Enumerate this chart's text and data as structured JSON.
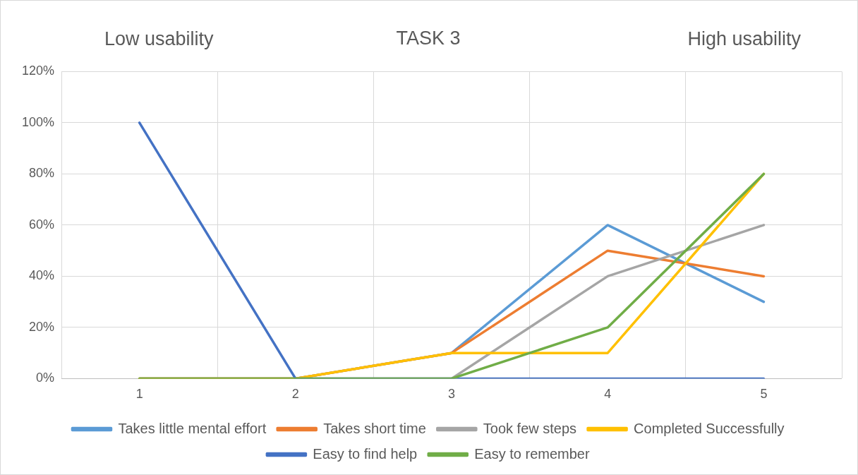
{
  "chart_data": {
    "type": "line",
    "title": "TASK 3",
    "annotations": [
      "Low usability",
      "High usability"
    ],
    "categories": [
      "1",
      "2",
      "3",
      "4",
      "5"
    ],
    "ylim": [
      0,
      120
    ],
    "yticks": [
      {
        "value": 0,
        "label": "0%"
      },
      {
        "value": 20,
        "label": "20%"
      },
      {
        "value": 40,
        "label": "40%"
      },
      {
        "value": 60,
        "label": "60%"
      },
      {
        "value": 80,
        "label": "80%"
      },
      {
        "value": 100,
        "label": "100%"
      },
      {
        "value": 120,
        "label": "120%"
      }
    ],
    "grid": true,
    "legend": "bottom",
    "marker": "none",
    "line_style": "solid",
    "series": [
      {
        "name": "Takes little mental effort",
        "color": "#5b9bd5",
        "values": [
          0,
          0,
          10,
          60,
          30
        ]
      },
      {
        "name": "Takes short time",
        "color": "#ed7d31",
        "values": [
          0,
          0,
          10,
          50,
          40
        ]
      },
      {
        "name": "Took few steps",
        "color": "#a5a5a5",
        "values": [
          0,
          0,
          0,
          40,
          60
        ]
      },
      {
        "name": "Completed Successfully",
        "color": "#ffc000",
        "values": [
          0,
          0,
          10,
          10,
          80
        ]
      },
      {
        "name": "Easy to find help",
        "color": "#4472c4",
        "values": [
          100,
          0,
          0,
          0,
          0
        ]
      },
      {
        "name": "Easy to remember",
        "color": "#70ad47",
        "values": [
          0,
          0,
          0,
          20,
          80
        ]
      }
    ]
  }
}
